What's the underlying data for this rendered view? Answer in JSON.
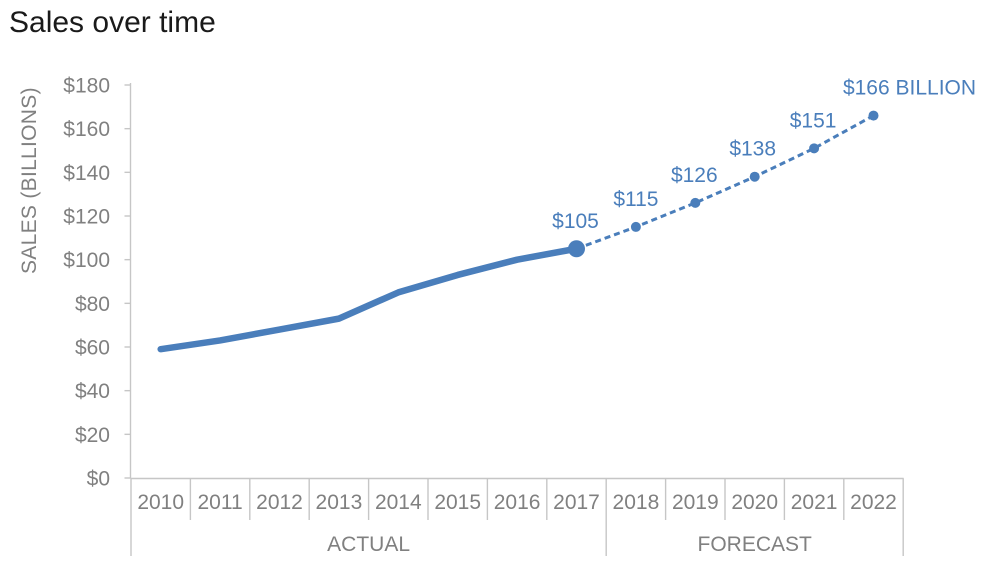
{
  "colors": {
    "accent_blue": "#4a7ebb",
    "axis_text_gray": "#808080",
    "axis_line_gray": "#c6c6c6",
    "title_color": "#1a1a1a"
  },
  "chart_data": {
    "type": "line",
    "title": "Sales over time",
    "ylabel": "SALES (BILLIONS)",
    "xlabel": "",
    "ylim": [
      0,
      180
    ],
    "ytick_interval": 20,
    "ytick_labels": [
      "$0",
      "$20",
      "$40",
      "$60",
      "$80",
      "$100",
      "$120",
      "$140",
      "$160",
      "$180"
    ],
    "categories": [
      "2010",
      "2011",
      "2012",
      "2013",
      "2014",
      "2015",
      "2016",
      "2017",
      "2018",
      "2019",
      "2020",
      "2021",
      "2022"
    ],
    "axis_groups": [
      {
        "label": "ACTUAL",
        "start": "2010",
        "end": "2017"
      },
      {
        "label": "FORECAST",
        "start": "2018",
        "end": "2022"
      }
    ],
    "grid": false,
    "legend": false,
    "series": [
      {
        "name": "Actual",
        "style": "solid",
        "color": "#4a7ebb",
        "x": [
          "2010",
          "2011",
          "2012",
          "2013",
          "2014",
          "2015",
          "2016",
          "2017"
        ],
        "values": [
          59,
          63,
          68,
          73,
          85,
          93,
          100,
          105
        ]
      },
      {
        "name": "Forecast",
        "style": "dashed",
        "color": "#4a7ebb",
        "x": [
          "2017",
          "2018",
          "2019",
          "2020",
          "2021",
          "2022"
        ],
        "values": [
          105,
          115,
          126,
          138,
          151,
          166
        ]
      }
    ],
    "data_labels": [
      {
        "x": "2017",
        "text": "$105",
        "dx": -1
      },
      {
        "x": "2018",
        "text": "$115",
        "dx": 0
      },
      {
        "x": "2019",
        "text": "$126",
        "dx": -1
      },
      {
        "x": "2020",
        "text": "$138",
        "dx": -2
      },
      {
        "x": "2021",
        "text": "$151",
        "dx": -1
      },
      {
        "x": "2022",
        "text": "$166 BILLION",
        "dx": 36
      }
    ]
  }
}
